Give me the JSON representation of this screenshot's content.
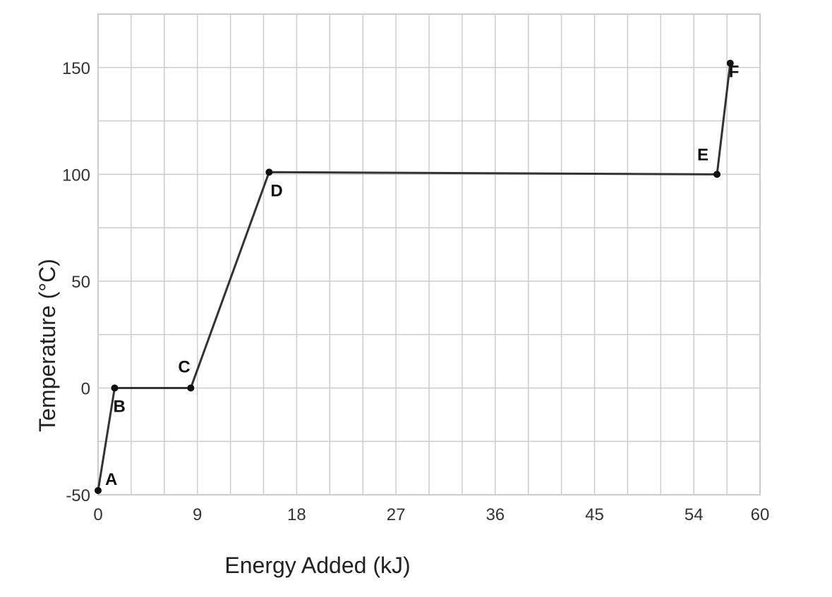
{
  "chart_data": {
    "type": "line",
    "title": "",
    "xlabel": "Energy Added (kJ)",
    "ylabel": "Temperature (°C)",
    "xlim": [
      0,
      60
    ],
    "ylim": [
      -50,
      175
    ],
    "x_ticks": [
      0,
      9,
      18,
      27,
      36,
      45,
      54,
      60
    ],
    "y_ticks": [
      -50,
      0,
      50,
      100,
      150
    ],
    "grid": true,
    "series": [
      {
        "points": [
          {
            "label": "A",
            "x": 0,
            "y": -48
          },
          {
            "label": "B",
            "x": 1.5,
            "y": 0
          },
          {
            "label": "C",
            "x": 8.4,
            "y": 0
          },
          {
            "label": "D",
            "x": 15.5,
            "y": 101
          },
          {
            "label": "E",
            "x": 56.1,
            "y": 100
          },
          {
            "label": "F",
            "x": 57.3,
            "y": 152
          }
        ]
      }
    ],
    "colors": {
      "line": "#333333",
      "grid": "#cccccc",
      "points": "#111111"
    }
  }
}
